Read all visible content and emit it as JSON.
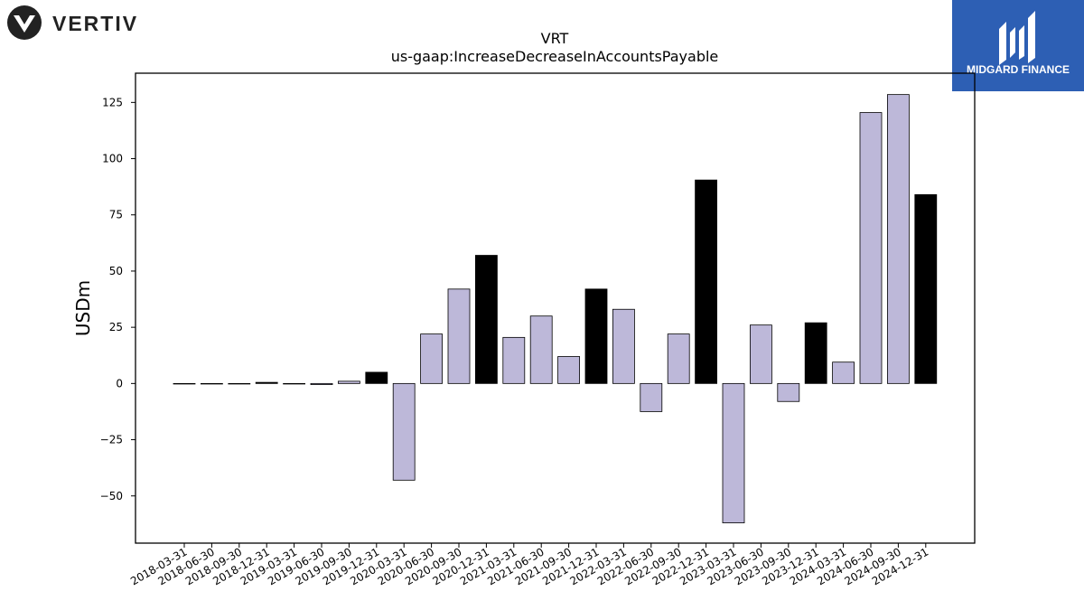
{
  "brand": {
    "left_logo_text": "VERTIV",
    "right_logo_text": "MIDGARD FINANCE"
  },
  "colors": {
    "light_bar": "#bdb8d9",
    "dark_bar": "#000000",
    "logo_bg": "#2d5fb4"
  },
  "chart_data": {
    "type": "bar",
    "title": "VRT",
    "subtitle": "us-gaap:IncreaseDecreaseInAccountsPayable",
    "xlabel": "",
    "ylabel": "USDm",
    "ylim": [
      -71,
      138
    ],
    "yticks": [
      -50,
      -25,
      0,
      25,
      50,
      75,
      100,
      125
    ],
    "grid": false,
    "categories": [
      "2018-03-31",
      "2018-06-30",
      "2018-09-30",
      "2018-12-31",
      "2019-03-31",
      "2019-06-30",
      "2019-09-30",
      "2019-12-31",
      "2020-03-31",
      "2020-06-30",
      "2020-09-30",
      "2020-12-31",
      "2021-03-31",
      "2021-06-30",
      "2021-09-30",
      "2021-12-31",
      "2022-03-31",
      "2022-06-30",
      "2022-09-30",
      "2022-12-31",
      "2023-03-31",
      "2023-06-30",
      "2023-09-30",
      "2023-12-31",
      "2024-03-31",
      "2024-06-30",
      "2024-09-30",
      "2024-12-31"
    ],
    "values": [
      0,
      0,
      0,
      0.5,
      0,
      -0.5,
      1,
      5,
      -43,
      22,
      42,
      57,
      20.5,
      30,
      12,
      42,
      33,
      -12.5,
      22,
      90.5,
      -62,
      26,
      -8,
      27,
      9.5,
      120.5,
      128.5,
      84
    ],
    "quarter_end": [
      false,
      false,
      false,
      true,
      false,
      false,
      false,
      true,
      false,
      false,
      false,
      true,
      false,
      false,
      false,
      true,
      false,
      false,
      false,
      true,
      false,
      false,
      false,
      true,
      false,
      false,
      false,
      true
    ]
  }
}
